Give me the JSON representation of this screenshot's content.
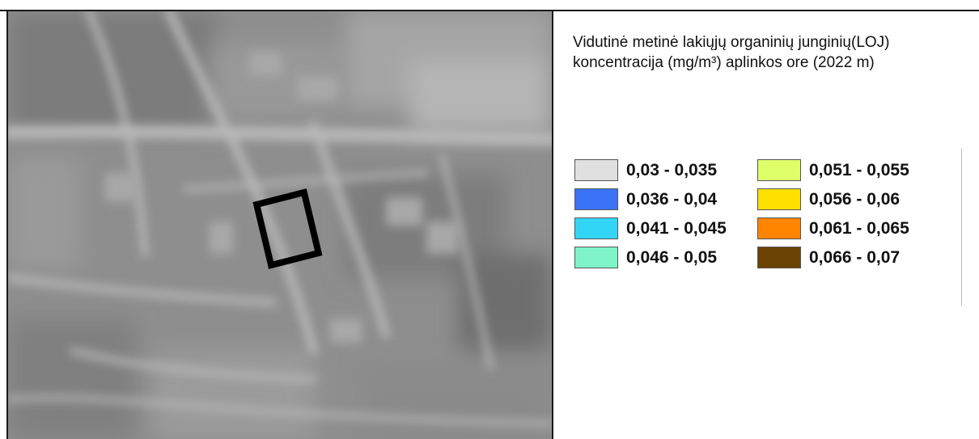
{
  "legend": {
    "title_lines": [
      "Vidutinė metinė lakiųjų organinių junginių(LOJ)",
      "koncentracija (mg/m³) aplinkos ore (2022 m)"
    ],
    "items": [
      {
        "label": "0,03 - 0,035",
        "color": "#e0e0e0"
      },
      {
        "label": "0,051 - 0,055",
        "color": "#dfff6a"
      },
      {
        "label": "0,036 - 0,04",
        "color": "#3a73f5"
      },
      {
        "label": "0,056 - 0,06",
        "color": "#ffe000"
      },
      {
        "label": "0,041 - 0,045",
        "color": "#33d5f6"
      },
      {
        "label": "0,061 - 0,065",
        "color": "#ff8400"
      },
      {
        "label": "0,046 - 0,05",
        "color": "#7ff4c8"
      },
      {
        "label": "0,066 - 0,07",
        "color": "#6a4202"
      }
    ]
  },
  "map": {
    "background_color": "#8e8e8e",
    "marker_color": "#000000"
  }
}
